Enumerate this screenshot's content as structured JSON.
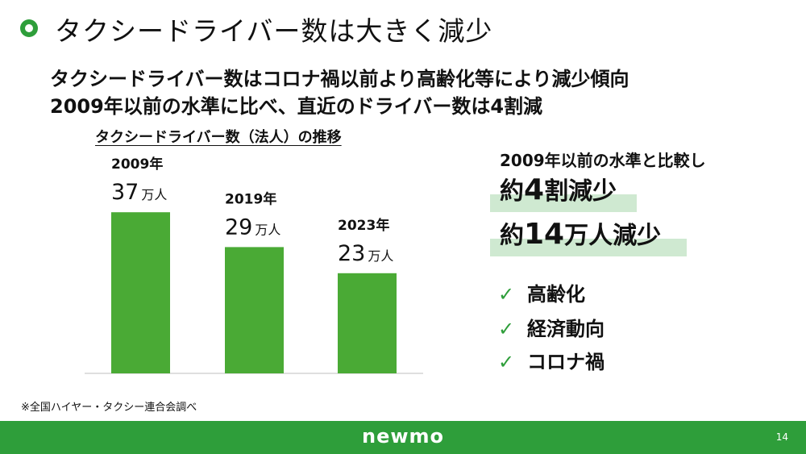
{
  "slide": {
    "title": "タクシードライバー数は大きく減少",
    "subtitle_line1": "タクシードライバー数はコロナ禍以前より高齢化等により減少傾向",
    "subtitle_line2": "2009年以前の水準に比べ、直近のドライバー数は4割減",
    "footnote": "※全国ハイヤー・タクシー連合会調べ",
    "page_number": "14",
    "logo": "newmo"
  },
  "summary": {
    "heading": "2009年以前の水準と比較し",
    "line1_prefix": "約",
    "line1_number": "4",
    "line1_suffix": "割減少",
    "line2_prefix": "約",
    "line2_number": "14",
    "line2_suffix": "万人減少",
    "check_mark": "✓",
    "reasons": [
      "高齢化",
      "経済動向",
      "コロナ禍"
    ]
  },
  "colors": {
    "accent": "#2e9e3a",
    "bar": "#4aaa35",
    "highlight": "#cfe9d1"
  },
  "chart_data": {
    "type": "bar",
    "title": "タクシードライバー数（法人）の推移",
    "categories": [
      "2009年",
      "2019年",
      "2023年"
    ],
    "values": [
      37,
      29,
      23
    ],
    "value_unit": "万人",
    "ylim": [
      0,
      50
    ],
    "grid": false,
    "legend": "none"
  }
}
